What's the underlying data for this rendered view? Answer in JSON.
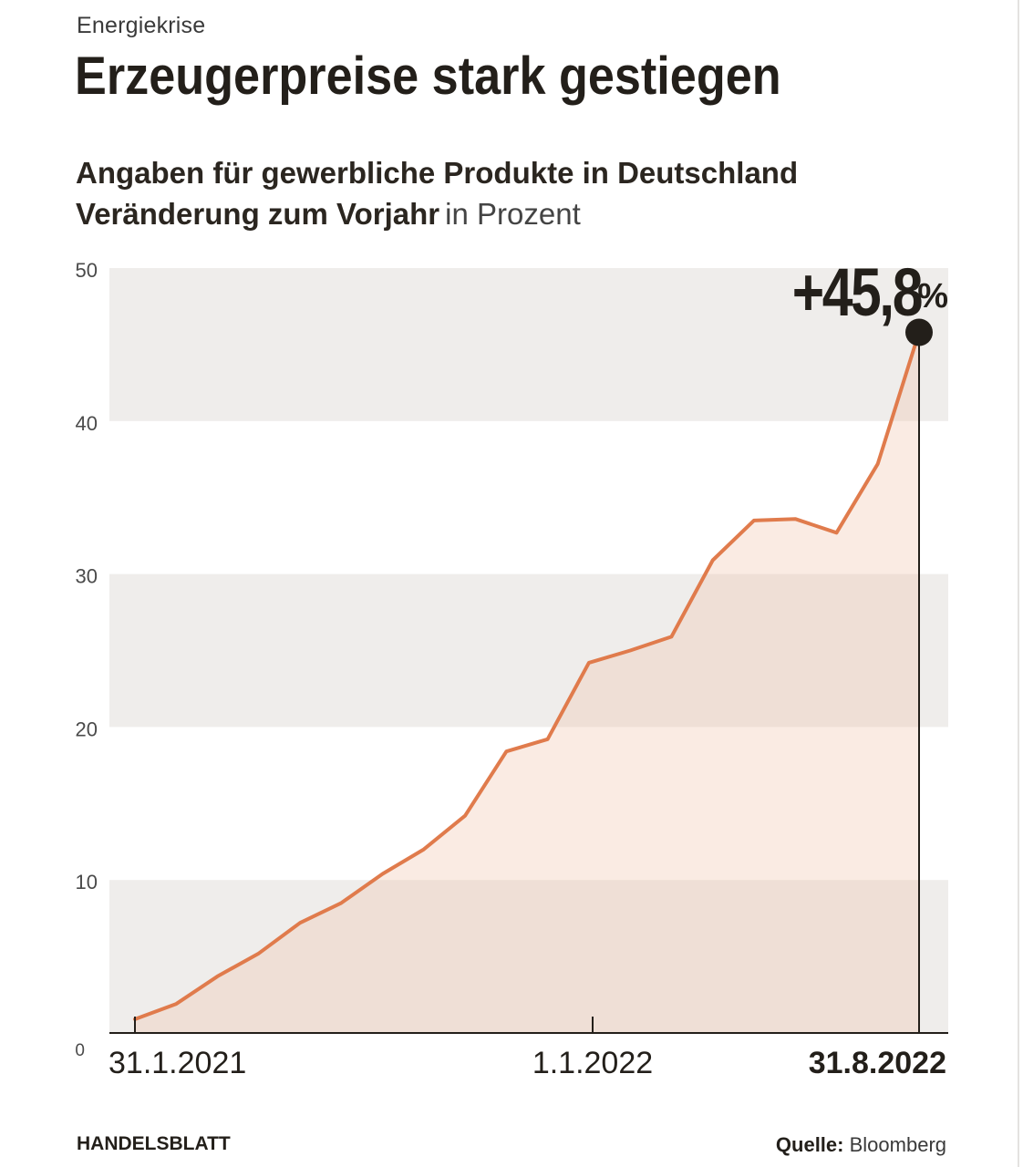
{
  "header": {
    "kicker": "Energiekrise",
    "title": "Erzeugerpreise stark gestiegen",
    "subtitle_line1": "Angaben für gewerbliche Produkte in Deutschland",
    "subtitle_line2_bold": "Veränderung zum Vorjahr",
    "subtitle_line2_unit": "in Prozent"
  },
  "footer": {
    "brand": "HANDELSBLATT",
    "source_label": "Quelle:",
    "source_value": "Bloomberg"
  },
  "colors": {
    "line": "#e07b4c",
    "area": "#f0c7ae",
    "band": "#efedeb",
    "text": "#231f1a",
    "marker": "#231f1a"
  },
  "chart_data": {
    "type": "area",
    "title": "Erzeugerpreise stark gestiegen",
    "xlabel": "",
    "ylabel": "",
    "ylim": [
      0,
      50
    ],
    "yticks": [
      0,
      10,
      20,
      30,
      40,
      50
    ],
    "grid": "alternating horizontal bands",
    "x_tick_labels": [
      {
        "label": "31.1.2021",
        "bold": false
      },
      {
        "label": "1.1.2022",
        "bold": false
      },
      {
        "label": "31.8.2022",
        "bold": true
      }
    ],
    "series": [
      {
        "x": [
          "2021-01",
          "2021-02",
          "2021-03",
          "2021-04",
          "2021-05",
          "2021-06",
          "2021-07",
          "2021-08",
          "2021-09",
          "2021-10",
          "2021-11",
          "2021-12",
          "2022-01",
          "2022-02",
          "2022-03",
          "2022-04",
          "2022-05",
          "2022-06",
          "2022-07",
          "2022-08"
        ],
        "values": [
          0.9,
          1.9,
          3.7,
          5.2,
          7.2,
          8.5,
          10.4,
          12.0,
          14.2,
          18.4,
          19.2,
          24.2,
          25.0,
          25.9,
          30.9,
          33.5,
          33.6,
          32.7,
          37.2,
          45.8
        ]
      }
    ],
    "annotation": {
      "value_text": "+45,8",
      "unit_text": "%",
      "at": "2022-08"
    }
  }
}
